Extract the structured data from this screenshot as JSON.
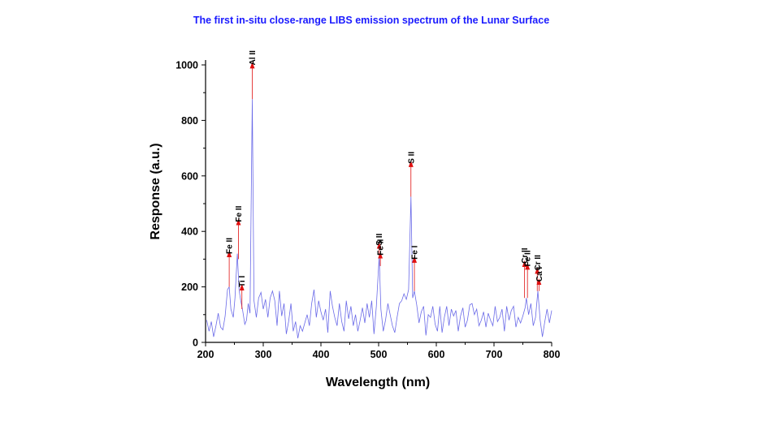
{
  "chart_data": {
    "type": "line",
    "title": "The first in-situ close-range LIBS emission spectrum of the Lunar Surface",
    "xlabel": "Wavelength (nm)",
    "ylabel": "Response (a.u.)",
    "xlim": [
      200,
      800
    ],
    "ylim": [
      0,
      1000
    ],
    "xticks": [
      200,
      300,
      400,
      500,
      600,
      700,
      800
    ],
    "yticks": [
      0,
      200,
      400,
      600,
      800,
      1000
    ],
    "grid": false,
    "colors": {
      "line": "#6a6ae8",
      "arrow": "#e01010",
      "title": "#1a1aff"
    },
    "series": [
      {
        "points": [
          [
            202,
            80
          ],
          [
            206,
            40
          ],
          [
            210,
            75
          ],
          [
            214,
            20
          ],
          [
            218,
            60
          ],
          [
            222,
            105
          ],
          [
            226,
            55
          ],
          [
            230,
            45
          ],
          [
            234,
            95
          ],
          [
            238,
            190
          ],
          [
            241,
            200
          ],
          [
            244,
            120
          ],
          [
            248,
            90
          ],
          [
            251,
            160
          ],
          [
            255,
            320
          ],
          [
            258,
            190
          ],
          [
            261,
            150
          ],
          [
            264,
            120
          ],
          [
            268,
            65
          ],
          [
            271,
            80
          ],
          [
            274,
            140
          ],
          [
            277,
            105
          ],
          [
            281,
            877
          ],
          [
            284,
            150
          ],
          [
            288,
            90
          ],
          [
            292,
            160
          ],
          [
            296,
            180
          ],
          [
            300,
            120
          ],
          [
            304,
            155
          ],
          [
            308,
            90
          ],
          [
            312,
            160
          ],
          [
            316,
            185
          ],
          [
            320,
            150
          ],
          [
            324,
            60
          ],
          [
            328,
            185
          ],
          [
            332,
            95
          ],
          [
            336,
            140
          ],
          [
            340,
            30
          ],
          [
            344,
            75
          ],
          [
            348,
            140
          ],
          [
            352,
            40
          ],
          [
            356,
            75
          ],
          [
            360,
            15
          ],
          [
            364,
            60
          ],
          [
            368,
            40
          ],
          [
            372,
            70
          ],
          [
            376,
            100
          ],
          [
            380,
            60
          ],
          [
            384,
            140
          ],
          [
            388,
            190
          ],
          [
            392,
            90
          ],
          [
            396,
            150
          ],
          [
            400,
            110
          ],
          [
            404,
            80
          ],
          [
            408,
            120
          ],
          [
            412,
            35
          ],
          [
            416,
            185
          ],
          [
            420,
            130
          ],
          [
            424,
            90
          ],
          [
            428,
            60
          ],
          [
            432,
            140
          ],
          [
            436,
            75
          ],
          [
            440,
            40
          ],
          [
            444,
            150
          ],
          [
            448,
            85
          ],
          [
            452,
            130
          ],
          [
            456,
            60
          ],
          [
            460,
            100
          ],
          [
            464,
            40
          ],
          [
            468,
            80
          ],
          [
            472,
            125
          ],
          [
            476,
            70
          ],
          [
            480,
            140
          ],
          [
            484,
            90
          ],
          [
            488,
            150
          ],
          [
            492,
            30
          ],
          [
            496,
            130
          ],
          [
            501,
            310
          ],
          [
            504,
            120
          ],
          [
            508,
            40
          ],
          [
            512,
            80
          ],
          [
            516,
            140
          ],
          [
            520,
            100
          ],
          [
            524,
            60
          ],
          [
            528,
            35
          ],
          [
            532,
            90
          ],
          [
            536,
            140
          ],
          [
            540,
            150
          ],
          [
            544,
            175
          ],
          [
            548,
            155
          ],
          [
            552,
            190
          ],
          [
            556,
            525
          ],
          [
            559,
            160
          ],
          [
            562,
            185
          ],
          [
            566,
            135
          ],
          [
            570,
            70
          ],
          [
            574,
            110
          ],
          [
            578,
            130
          ],
          [
            582,
            25
          ],
          [
            586,
            100
          ],
          [
            590,
            90
          ],
          [
            594,
            130
          ],
          [
            598,
            65
          ],
          [
            602,
            40
          ],
          [
            606,
            130
          ],
          [
            610,
            35
          ],
          [
            614,
            90
          ],
          [
            618,
            130
          ],
          [
            622,
            60
          ],
          [
            626,
            120
          ],
          [
            630,
            95
          ],
          [
            634,
            115
          ],
          [
            638,
            40
          ],
          [
            642,
            95
          ],
          [
            646,
            125
          ],
          [
            650,
            55
          ],
          [
            654,
            80
          ],
          [
            658,
            135
          ],
          [
            662,
            140
          ],
          [
            666,
            100
          ],
          [
            670,
            120
          ],
          [
            674,
            60
          ],
          [
            678,
            80
          ],
          [
            682,
            110
          ],
          [
            686,
            55
          ],
          [
            690,
            105
          ],
          [
            694,
            80
          ],
          [
            698,
            60
          ],
          [
            702,
            130
          ],
          [
            706,
            75
          ],
          [
            710,
            90
          ],
          [
            714,
            120
          ],
          [
            718,
            40
          ],
          [
            722,
            130
          ],
          [
            726,
            80
          ],
          [
            730,
            115
          ],
          [
            734,
            130
          ],
          [
            738,
            55
          ],
          [
            742,
            90
          ],
          [
            746,
            70
          ],
          [
            750,
            95
          ],
          [
            754,
            125
          ],
          [
            756,
            160
          ],
          [
            760,
            100
          ],
          [
            764,
            140
          ],
          [
            768,
            60
          ],
          [
            772,
            90
          ],
          [
            776,
            185
          ],
          [
            780,
            80
          ],
          [
            784,
            20
          ],
          [
            788,
            75
          ],
          [
            792,
            120
          ],
          [
            796,
            70
          ],
          [
            800,
            115
          ]
        ]
      }
    ],
    "annotations": [
      {
        "label": "Fe II",
        "x": 241,
        "y_base": 200,
        "y_tip": 310
      },
      {
        "label": "Fe II",
        "x": 257,
        "y_base": 300,
        "y_tip": 425
      },
      {
        "label": "Ti I",
        "x": 263,
        "y_base": 120,
        "y_tip": 190
      },
      {
        "label": "Al II",
        "x": 281,
        "y_base": 877,
        "y_tip": 990
      },
      {
        "label": "S II",
        "x": 501,
        "y_base": 310,
        "y_tip": 340
      },
      {
        "label": "Fe II",
        "x": 503,
        "y_base": 275,
        "y_tip": 305
      },
      {
        "label": "S II",
        "x": 556,
        "y_base": 525,
        "y_tip": 635
      },
      {
        "label": "Fe I",
        "x": 562,
        "y_base": 185,
        "y_tip": 290
      },
      {
        "label": "Cr II",
        "x": 753,
        "y_base": 160,
        "y_tip": 275
      },
      {
        "label": "Fe II",
        "x": 758,
        "y_base": 160,
        "y_tip": 265
      },
      {
        "label": "Cr II",
        "x": 775,
        "y_base": 185,
        "y_tip": 250
      },
      {
        "label": "Ca I",
        "x": 778,
        "y_base": 185,
        "y_tip": 210
      }
    ]
  }
}
